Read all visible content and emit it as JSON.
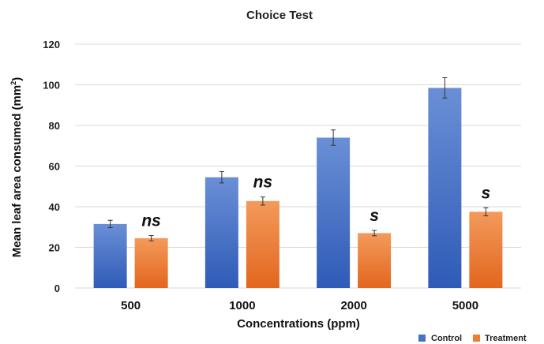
{
  "chart_data": {
    "type": "bar",
    "title": "Choice Test",
    "xlabel": "Concentrations (ppm)",
    "ylabel_main": "Mean leaf area consumed (mm",
    "ylabel_sup": "2",
    "ylabel_end": ")",
    "ylim": [
      0,
      120
    ],
    "yticks": [
      0,
      20,
      40,
      60,
      80,
      100,
      120
    ],
    "grid": true,
    "legend_position": "bottom-right",
    "categories": [
      "500",
      "1000",
      "2000",
      "5000"
    ],
    "series": [
      {
        "name": "Control",
        "color": "#4472C4",
        "values": [
          31.5,
          54.5,
          74,
          98.5
        ],
        "errors": [
          1.8,
          2.8,
          3.8,
          5
        ]
      },
      {
        "name": "Treatment",
        "color": "#ED7D31",
        "values": [
          24.5,
          42.8,
          27,
          37.5
        ],
        "errors": [
          1.3,
          2,
          1.3,
          2
        ]
      }
    ],
    "annotations": [
      "ns",
      "ns",
      "s",
      "s"
    ]
  }
}
